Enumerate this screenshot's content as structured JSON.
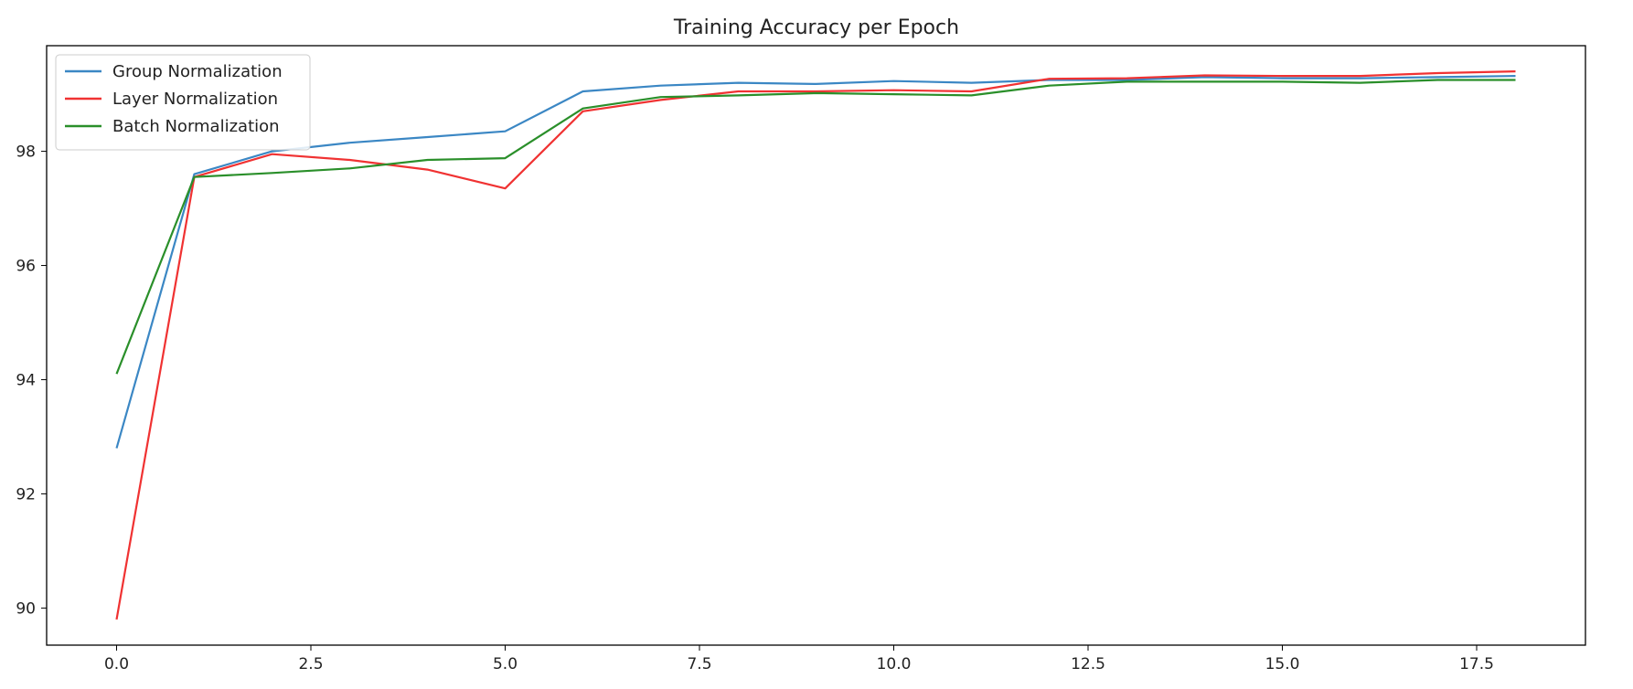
{
  "chart_data": {
    "type": "line",
    "title": "Training Accuracy per Epoch",
    "xlabel": "",
    "ylabel": "",
    "xlim": [
      -0.9,
      18.9
    ],
    "ylim": [
      89.35,
      99.85
    ],
    "xticks": [
      0.0,
      2.5,
      5.0,
      7.5,
      10.0,
      12.5,
      15.0,
      17.5
    ],
    "xtick_labels": [
      "0.0",
      "2.5",
      "5.0",
      "7.5",
      "10.0",
      "12.5",
      "15.0",
      "17.5"
    ],
    "yticks": [
      90,
      92,
      94,
      96,
      98
    ],
    "ytick_labels": [
      "90",
      "92",
      "94",
      "96",
      "98"
    ],
    "grid": false,
    "legend_position": "top-left",
    "x": [
      0,
      1,
      2,
      3,
      4,
      5,
      6,
      7,
      8,
      9,
      10,
      11,
      12,
      13,
      14,
      15,
      16,
      17,
      18
    ],
    "series": [
      {
        "name": "Group Normalization",
        "color": "#3b87c4",
        "values": [
          92.8,
          97.6,
          98.0,
          98.15,
          98.25,
          98.35,
          99.05,
          99.15,
          99.2,
          99.18,
          99.23,
          99.2,
          99.25,
          99.25,
          99.3,
          99.28,
          99.28,
          99.3,
          99.32
        ]
      },
      {
        "name": "Layer Normalization",
        "color": "#f03232",
        "values": [
          89.8,
          97.55,
          97.95,
          97.85,
          97.68,
          97.35,
          98.7,
          98.9,
          99.05,
          99.05,
          99.07,
          99.05,
          99.27,
          99.28,
          99.33,
          99.32,
          99.32,
          99.37,
          99.4
        ]
      },
      {
        "name": "Batch Normalization",
        "color": "#2a8f2a",
        "values": [
          94.1,
          97.55,
          97.62,
          97.7,
          97.85,
          97.88,
          98.75,
          98.95,
          98.98,
          99.02,
          99.0,
          98.98,
          99.15,
          99.22,
          99.22,
          99.22,
          99.2,
          99.25,
          99.25
        ]
      }
    ]
  }
}
